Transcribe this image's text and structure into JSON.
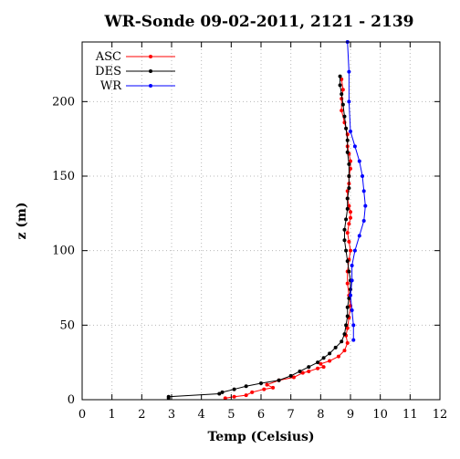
{
  "chart_data": {
    "type": "line",
    "title": "WR-Sonde 09-02-2011, 2121 - 2139",
    "xlabel": "Temp (Celsius)",
    "ylabel": "z (m)",
    "xlim": [
      0,
      12
    ],
    "ylim": [
      0,
      240
    ],
    "xticks": [
      0,
      1,
      2,
      3,
      4,
      5,
      6,
      7,
      8,
      9,
      10,
      11,
      12
    ],
    "yticks": [
      0,
      50,
      100,
      150,
      200
    ],
    "grid": true,
    "legend_position": "top-left",
    "series": [
      {
        "name": "ASC",
        "color": "#ff0000",
        "x": [
          4.8,
          5.1,
          5.5,
          5.7,
          6.1,
          6.4,
          6.2,
          6.6,
          7.1,
          7.4,
          7.6,
          7.9,
          8.1,
          8.0,
          8.3,
          8.6,
          8.8,
          8.9,
          8.85,
          8.9,
          8.95,
          9.0,
          8.95,
          8.9,
          8.9,
          8.95,
          9.0,
          8.95,
          8.9,
          8.95,
          9.0,
          9.0,
          8.95,
          8.9,
          8.9,
          8.95,
          8.95,
          9.0,
          9.0,
          8.95,
          8.9,
          8.9,
          8.8,
          8.7,
          8.7,
          8.75,
          8.7
        ],
        "y": [
          1,
          2,
          3,
          5,
          7,
          8,
          10,
          13,
          15,
          18,
          19,
          21,
          22,
          24,
          26,
          29,
          33,
          38,
          43,
          48,
          55,
          63,
          70,
          78,
          86,
          94,
          100,
          106,
          112,
          118,
          122,
          126,
          130,
          135,
          140,
          145,
          150,
          155,
          160,
          165,
          170,
          178,
          186,
          194,
          202,
          208,
          215
        ]
      },
      {
        "name": "DES",
        "color": "#000000",
        "x": [
          2.9,
          2.9,
          4.6,
          4.7,
          5.1,
          5.5,
          6.0,
          6.6,
          7.0,
          7.3,
          7.6,
          7.9,
          8.1,
          8.3,
          8.5,
          8.7,
          8.8,
          8.85,
          8.9,
          8.9,
          8.95,
          9.0,
          9.0,
          8.95,
          8.9,
          8.85,
          8.8,
          8.8,
          8.85,
          8.9,
          8.9,
          8.95,
          8.95,
          8.95,
          8.9,
          8.9,
          8.85,
          8.8,
          8.75,
          8.7,
          8.65,
          8.65
        ],
        "y": [
          1,
          2,
          4,
          5,
          7,
          9,
          11,
          13,
          16,
          19,
          22,
          25,
          28,
          31,
          35,
          39,
          44,
          50,
          56,
          62,
          68,
          74,
          80,
          86,
          93,
          100,
          107,
          114,
          121,
          128,
          135,
          142,
          150,
          158,
          166,
          174,
          182,
          190,
          198,
          205,
          211,
          217
        ]
      },
      {
        "name": "WR",
        "color": "#0000ff",
        "x": [
          9.1,
          9.1,
          9.05,
          9.0,
          9.05,
          9.05,
          9.15,
          9.3,
          9.45,
          9.5,
          9.45,
          9.4,
          9.3,
          9.15,
          9.0,
          8.95,
          8.95,
          8.9
        ],
        "y": [
          40,
          50,
          60,
          70,
          80,
          90,
          100,
          110,
          120,
          130,
          140,
          150,
          160,
          170,
          180,
          200,
          220,
          240
        ]
      }
    ]
  }
}
